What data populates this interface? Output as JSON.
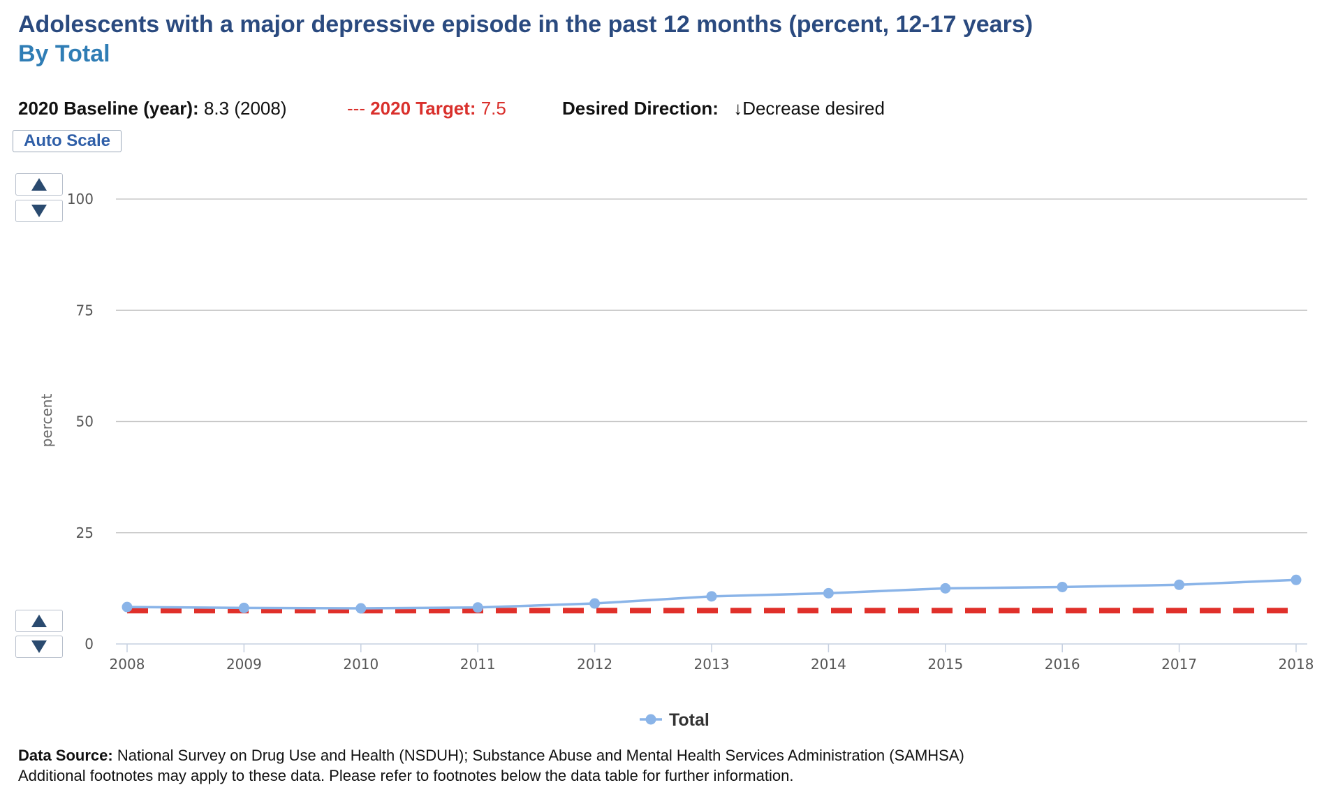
{
  "header": {
    "title": "Adolescents with a major depressive episode in the past 12 months (percent, 12-17 years)",
    "subtitle": "By Total"
  },
  "info": {
    "baseline_label": "2020 Baseline (year):",
    "baseline_value": "8.3 (2008)",
    "target_prefix": "---",
    "target_label": "2020 Target:",
    "target_value": "7.5",
    "direction_label": "Desired Direction:",
    "direction_arrow": "↓",
    "direction_value": "Decrease desired"
  },
  "controls": {
    "auto_scale_label": "Auto Scale"
  },
  "chart_data": {
    "type": "line",
    "ylabel": "percent",
    "ylim": [
      0,
      100
    ],
    "yticks": [
      0,
      25,
      50,
      75,
      100
    ],
    "x": [
      "2008",
      "2009",
      "2010",
      "2011",
      "2012",
      "2013",
      "2014",
      "2015",
      "2016",
      "2017",
      "2018"
    ],
    "series": [
      {
        "name": "Total",
        "color": "#8ab4e8",
        "values": [
          8.3,
          8.1,
          8.0,
          8.2,
          9.1,
          10.7,
          11.4,
          12.5,
          12.8,
          13.3,
          14.4
        ]
      }
    ],
    "target": {
      "value": 7.5,
      "color": "#e0302a",
      "style": "dashed"
    },
    "grid": true,
    "legend": "bottom-center"
  },
  "footer": {
    "source_label": "Data Source:",
    "source_text": "National Survey on Drug Use and Health (NSDUH); Substance Abuse and Mental Health Services Administration (SAMHSA)",
    "footnote": "Additional footnotes may apply to these data. Please refer to footnotes below the data table for further information."
  }
}
